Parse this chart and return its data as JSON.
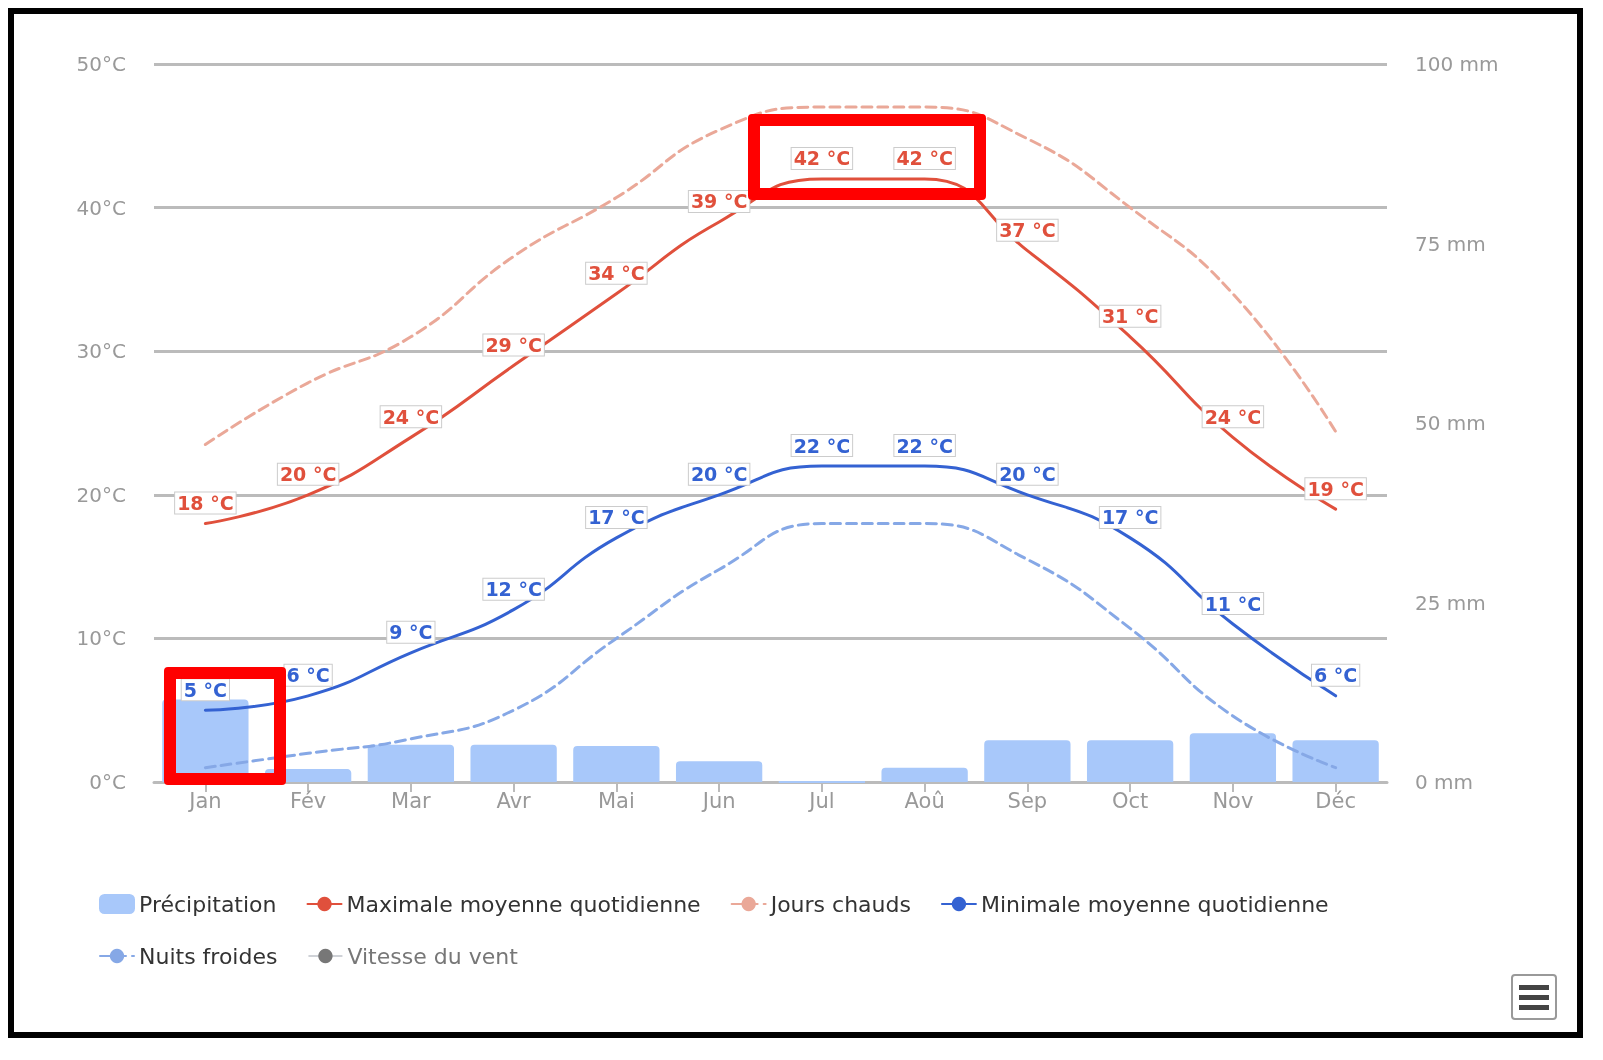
{
  "chart_data": {
    "type": "line",
    "categories": [
      "Jan",
      "Fév",
      "Mar",
      "Avr",
      "Mai",
      "Jun",
      "Jul",
      "Aoû",
      "Sep",
      "Oct",
      "Nov",
      "Déc"
    ],
    "series": [
      {
        "name": "Précipitation",
        "type": "bar",
        "axis": "y2",
        "color": "#a8c8fa",
        "values": [
          11.5,
          1.8,
          5.2,
          5.2,
          5,
          2.9,
          0,
          2,
          5.8,
          5.8,
          6.8,
          5.8
        ]
      },
      {
        "name": "Maximale moyenne quotidienne",
        "color": "#e0503c",
        "line_style": "solid",
        "values": [
          18,
          20,
          24,
          29,
          34,
          39,
          42,
          42,
          37,
          31,
          24,
          19
        ],
        "value_labels": [
          "18 °C",
          "20 °C",
          "24 °C",
          "29 °C",
          "34 °C",
          "39 °C",
          "42 °C",
          "42 °C",
          "37 °C",
          "31 °C",
          "24 °C",
          "19 °C"
        ]
      },
      {
        "name": "Jours chauds",
        "color": "#eaa898",
        "line_style": "dashed",
        "values": [
          23.5,
          27.8,
          31,
          36.6,
          40.7,
          45.4,
          47,
          47,
          44.8,
          40,
          34,
          24.4
        ]
      },
      {
        "name": "Minimale moyenne quotidienne",
        "color": "#3462d2",
        "line_style": "solid",
        "values": [
          5,
          6,
          9,
          12,
          17,
          20,
          22,
          22,
          20,
          17,
          11,
          6
        ],
        "value_labels": [
          "5 °C",
          "6 °C",
          "9 °C",
          "12 °C",
          "17 °C",
          "20 °C",
          "22 °C",
          "22 °C",
          "20 °C",
          "17 °C",
          "11 °C",
          "6 °C"
        ]
      },
      {
        "name": "Nuits froides",
        "color": "#86a8e6",
        "line_style": "dashed",
        "values": [
          1,
          2,
          3,
          5,
          10,
          14.8,
          18,
          18,
          15.5,
          10.7,
          4.6,
          1
        ]
      },
      {
        "name": "Vitesse du vent",
        "color": "#c8c8c8",
        "line_style": "solid",
        "values": [
          null,
          null,
          null,
          null,
          null,
          null,
          null,
          null,
          null,
          null,
          null,
          null
        ]
      }
    ],
    "ylim": [
      0,
      50
    ],
    "yticks": [
      {
        "value": 0,
        "label": "0°C"
      },
      {
        "value": 10,
        "label": "10°C"
      },
      {
        "value": 20,
        "label": "20°C"
      },
      {
        "value": 30,
        "label": "30°C"
      },
      {
        "value": 40,
        "label": "40°C"
      },
      {
        "value": 50,
        "label": "50°C"
      }
    ],
    "y2lim": [
      0,
      100
    ],
    "y2ticks": [
      {
        "value": 0,
        "label": "0 mm"
      },
      {
        "value": 25,
        "label": "25 mm"
      },
      {
        "value": 50,
        "label": "50 mm"
      },
      {
        "value": 75,
        "label": "75 mm"
      },
      {
        "value": 100,
        "label": "100 mm"
      }
    ],
    "grid": "y",
    "legend": "bottom left",
    "marker": "none"
  }
}
